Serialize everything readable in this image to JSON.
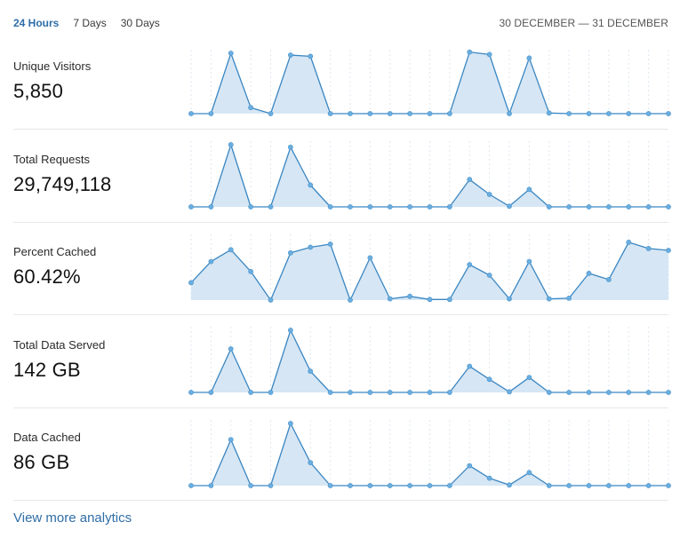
{
  "tabs": [
    {
      "label": "24 Hours",
      "active": true
    },
    {
      "label": "7 Days",
      "active": false
    },
    {
      "label": "30 Days",
      "active": false
    }
  ],
  "date_range": "30 DECEMBER — 31 DECEMBER",
  "metrics": [
    {
      "label": "Unique Visitors",
      "value": "5,850"
    },
    {
      "label": "Total Requests",
      "value": "29,749,118"
    },
    {
      "label": "Percent Cached",
      "value": "60.42%"
    },
    {
      "label": "Total Data Served",
      "value": "142 GB"
    },
    {
      "label": "Data Cached",
      "value": "86 GB"
    }
  ],
  "chart_data": [
    {
      "type": "area",
      "title": "Unique Visitors",
      "ylim": [
        0,
        100
      ],
      "values": [
        0,
        0,
        100,
        10,
        0,
        97,
        95,
        0,
        0,
        0,
        0,
        0,
        0,
        0,
        102,
        98,
        0,
        92,
        1,
        0,
        0,
        0,
        0,
        0,
        0
      ]
    },
    {
      "type": "area",
      "title": "Total Requests",
      "ylim": [
        0,
        100
      ],
      "values": [
        0,
        0,
        100,
        0,
        0,
        96,
        35,
        0,
        0,
        0,
        0,
        0,
        0,
        0,
        44,
        20,
        1,
        28,
        0,
        0,
        0,
        0,
        0,
        0,
        0
      ]
    },
    {
      "type": "area",
      "title": "Percent Cached",
      "ylim": [
        0,
        100
      ],
      "values": [
        28,
        62,
        81,
        46,
        0,
        76,
        85,
        90,
        0,
        68,
        2,
        6,
        1,
        1,
        57,
        40,
        2,
        62,
        2,
        3,
        43,
        33,
        93,
        83,
        80
      ]
    },
    {
      "type": "area",
      "title": "Total Data Served",
      "ylim": [
        0,
        100
      ],
      "values": [
        0,
        0,
        70,
        0,
        0,
        100,
        34,
        0,
        0,
        0,
        0,
        0,
        0,
        0,
        42,
        21,
        1,
        24,
        0,
        0,
        0,
        0,
        0,
        0,
        0
      ]
    },
    {
      "type": "area",
      "title": "Data Cached",
      "ylim": [
        0,
        100
      ],
      "values": [
        0,
        0,
        74,
        0,
        0,
        100,
        37,
        0,
        0,
        0,
        0,
        0,
        0,
        0,
        32,
        12,
        1,
        21,
        0,
        0,
        0,
        0,
        0,
        0,
        0
      ]
    }
  ],
  "footer": {
    "link_label": "View more analytics"
  }
}
